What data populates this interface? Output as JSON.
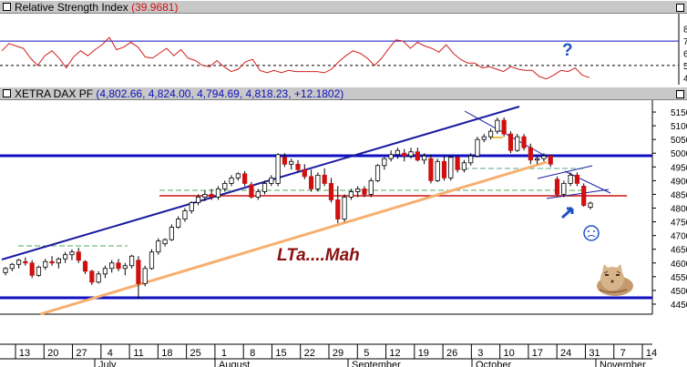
{
  "rsi_header": {
    "name": "Relative Strength Index",
    "value": "(39.9681)"
  },
  "price_header": {
    "name": "XETRA DAX PF",
    "ohlc": "(4,802.66, 4,824.00, 4,794.69, 4,818.23, +12.1802)"
  },
  "annotation": "LTa....Mah",
  "question_mark": "?",
  "colors": {
    "up_candle": "#ffffff",
    "down_candle": "#d01010",
    "trend_blue": "#1a1aa0",
    "trend_orange": "#f5b070",
    "horizontal_blue": "#1010c0",
    "horizontal_red": "#cc1010",
    "rsi_line": "#d02020"
  },
  "chart_data": [
    {
      "type": "line",
      "title": "Relative Strength Index",
      "current_value": 39.9681,
      "y_ticks": [
        "8",
        "7",
        "6",
        "5",
        "4"
      ],
      "ylim": [
        35,
        85
      ],
      "guide_levels": [
        70,
        50
      ],
      "series": [
        {
          "values": [
            62,
            68,
            66,
            64,
            56,
            50,
            58,
            62,
            56,
            48,
            57,
            62,
            58,
            63,
            67,
            73,
            63,
            65,
            69,
            65,
            57,
            56,
            60,
            64,
            58,
            63,
            56,
            54,
            50,
            49,
            54,
            49,
            45,
            47,
            53,
            55,
            46,
            44,
            46,
            44,
            46,
            45,
            45,
            45,
            45,
            44,
            47,
            53,
            58,
            62,
            60,
            56,
            50,
            56,
            64,
            71,
            70,
            64,
            69,
            66,
            64,
            61,
            67,
            60,
            55,
            52,
            52,
            48,
            49,
            47,
            45,
            49,
            47,
            46,
            46,
            41,
            39,
            42,
            46,
            45,
            48,
            42,
            40
          ]
        }
      ]
    },
    {
      "type": "candlestick",
      "title": "XETRA DAX PF",
      "ylim": [
        4420,
        5180
      ],
      "y_ticks": [
        "5150",
        "5100",
        "5050",
        "5000",
        "4950",
        "4900",
        "4850",
        "4800",
        "4750",
        "4700",
        "4650",
        "4600",
        "4550",
        "4500",
        "4450"
      ],
      "x_ticks": [
        "13",
        "20",
        "27",
        "4",
        "11",
        "18",
        "25",
        "1",
        "8",
        "15",
        "22",
        "29",
        "5",
        "12",
        "19",
        "26",
        "3",
        "10",
        "17",
        "24",
        "31",
        "7",
        "14"
      ],
      "months": [
        "July",
        "August",
        "September",
        "October",
        "November"
      ],
      "candles": [
        {
          "o": 4565,
          "h": 4585,
          "l": 4555,
          "c": 4580
        },
        {
          "o": 4580,
          "h": 4600,
          "l": 4570,
          "c": 4595
        },
        {
          "o": 4595,
          "h": 4615,
          "l": 4580,
          "c": 4610
        },
        {
          "o": 4605,
          "h": 4620,
          "l": 4590,
          "c": 4600
        },
        {
          "o": 4600,
          "h": 4610,
          "l": 4545,
          "c": 4555
        },
        {
          "o": 4555,
          "h": 4590,
          "l": 4550,
          "c": 4585
        },
        {
          "o": 4585,
          "h": 4615,
          "l": 4575,
          "c": 4605
        },
        {
          "o": 4605,
          "h": 4625,
          "l": 4590,
          "c": 4600
        },
        {
          "o": 4600,
          "h": 4620,
          "l": 4580,
          "c": 4615
        },
        {
          "o": 4615,
          "h": 4640,
          "l": 4600,
          "c": 4630
        },
        {
          "o": 4630,
          "h": 4650,
          "l": 4610,
          "c": 4640
        },
        {
          "o": 4640,
          "h": 4655,
          "l": 4600,
          "c": 4610
        },
        {
          "o": 4605,
          "h": 4610,
          "l": 4560,
          "c": 4570
        },
        {
          "o": 4570,
          "h": 4575,
          "l": 4520,
          "c": 4530
        },
        {
          "o": 4530,
          "h": 4570,
          "l": 4525,
          "c": 4560
        },
        {
          "o": 4560,
          "h": 4590,
          "l": 4545,
          "c": 4580
        },
        {
          "o": 4580,
          "h": 4610,
          "l": 4565,
          "c": 4600
        },
        {
          "o": 4600,
          "h": 4615,
          "l": 4570,
          "c": 4580
        },
        {
          "o": 4580,
          "h": 4600,
          "l": 4555,
          "c": 4590
        },
        {
          "o": 4590,
          "h": 4630,
          "l": 4580,
          "c": 4625
        },
        {
          "o": 4610,
          "h": 4625,
          "l": 4470,
          "c": 4525
        },
        {
          "o": 4525,
          "h": 4590,
          "l": 4515,
          "c": 4580
        },
        {
          "o": 4580,
          "h": 4650,
          "l": 4575,
          "c": 4640
        },
        {
          "o": 4640,
          "h": 4690,
          "l": 4630,
          "c": 4680
        },
        {
          "o": 4670,
          "h": 4690,
          "l": 4660,
          "c": 4685
        },
        {
          "o": 4685,
          "h": 4740,
          "l": 4680,
          "c": 4730
        },
        {
          "o": 4730,
          "h": 4770,
          "l": 4725,
          "c": 4760
        },
        {
          "o": 4760,
          "h": 4800,
          "l": 4750,
          "c": 4790
        },
        {
          "o": 4790,
          "h": 4825,
          "l": 4780,
          "c": 4820
        },
        {
          "o": 4820,
          "h": 4850,
          "l": 4810,
          "c": 4840
        },
        {
          "o": 4840,
          "h": 4865,
          "l": 4825,
          "c": 4850
        },
        {
          "o": 4850,
          "h": 4870,
          "l": 4830,
          "c": 4840
        },
        {
          "o": 4840,
          "h": 4880,
          "l": 4830,
          "c": 4870
        },
        {
          "o": 4870,
          "h": 4900,
          "l": 4860,
          "c": 4890
        },
        {
          "o": 4890,
          "h": 4920,
          "l": 4880,
          "c": 4910
        },
        {
          "o": 4910,
          "h": 4930,
          "l": 4900,
          "c": 4925
        },
        {
          "o": 4925,
          "h": 4935,
          "l": 4880,
          "c": 4890
        },
        {
          "o": 4885,
          "h": 4895,
          "l": 4835,
          "c": 4840
        },
        {
          "o": 4840,
          "h": 4870,
          "l": 4830,
          "c": 4860
        },
        {
          "o": 4860,
          "h": 4900,
          "l": 4850,
          "c": 4890
        },
        {
          "o": 4890,
          "h": 4920,
          "l": 4880,
          "c": 4910
        },
        {
          "o": 4890,
          "h": 5000,
          "l": 4880,
          "c": 4995
        },
        {
          "o": 4985,
          "h": 5000,
          "l": 4950,
          "c": 4960
        },
        {
          "o": 4960,
          "h": 4980,
          "l": 4940,
          "c": 4970
        },
        {
          "o": 4960,
          "h": 4975,
          "l": 4930,
          "c": 4940
        },
        {
          "o": 4940,
          "h": 4960,
          "l": 4905,
          "c": 4915
        },
        {
          "o": 4915,
          "h": 4940,
          "l": 4860,
          "c": 4870
        },
        {
          "o": 4870,
          "h": 4930,
          "l": 4860,
          "c": 4920
        },
        {
          "o": 4920,
          "h": 4945,
          "l": 4880,
          "c": 4890
        },
        {
          "o": 4890,
          "h": 4910,
          "l": 4820,
          "c": 4830
        },
        {
          "o": 4830,
          "h": 4880,
          "l": 4745,
          "c": 4760
        },
        {
          "o": 4760,
          "h": 4850,
          "l": 4750,
          "c": 4840
        },
        {
          "o": 4840,
          "h": 4870,
          "l": 4830,
          "c": 4860
        },
        {
          "o": 4860,
          "h": 4880,
          "l": 4840,
          "c": 4870
        },
        {
          "o": 4870,
          "h": 4880,
          "l": 4840,
          "c": 4850
        },
        {
          "o": 4850,
          "h": 4910,
          "l": 4840,
          "c": 4900
        },
        {
          "o": 4900,
          "h": 4960,
          "l": 4895,
          "c": 4955
        },
        {
          "o": 4955,
          "h": 4985,
          "l": 4940,
          "c": 4980
        },
        {
          "o": 4980,
          "h": 5010,
          "l": 4970,
          "c": 4995
        },
        {
          "o": 4995,
          "h": 5020,
          "l": 4980,
          "c": 5010
        },
        {
          "o": 5000,
          "h": 5015,
          "l": 4970,
          "c": 4990
        },
        {
          "o": 4990,
          "h": 5020,
          "l": 4980,
          "c": 5005
        },
        {
          "o": 5005,
          "h": 5020,
          "l": 4970,
          "c": 4975
        },
        {
          "o": 4975,
          "h": 5000,
          "l": 4960,
          "c": 4990
        },
        {
          "o": 4980,
          "h": 4995,
          "l": 4890,
          "c": 4900
        },
        {
          "o": 4900,
          "h": 4980,
          "l": 4895,
          "c": 4970
        },
        {
          "o": 4970,
          "h": 4990,
          "l": 4900,
          "c": 4910
        },
        {
          "o": 4910,
          "h": 4990,
          "l": 4900,
          "c": 4985
        },
        {
          "o": 4985,
          "h": 4990,
          "l": 4930,
          "c": 4940
        },
        {
          "o": 4940,
          "h": 4975,
          "l": 4930,
          "c": 4965
        },
        {
          "o": 4965,
          "h": 5000,
          "l": 4955,
          "c": 4990
        },
        {
          "o": 4990,
          "h": 5060,
          "l": 4985,
          "c": 5050
        },
        {
          "o": 5050,
          "h": 5070,
          "l": 5040,
          "c": 5060
        },
        {
          "o": 5060,
          "h": 5090,
          "l": 5050,
          "c": 5080
        },
        {
          "o": 5080,
          "h": 5130,
          "l": 5070,
          "c": 5120
        },
        {
          "o": 5120,
          "h": 5130,
          "l": 5060,
          "c": 5070
        },
        {
          "o": 5070,
          "h": 5080,
          "l": 5000,
          "c": 5010
        },
        {
          "o": 5010,
          "h": 5070,
          "l": 5005,
          "c": 5060
        },
        {
          "o": 5060,
          "h": 5070,
          "l": 5010,
          "c": 5020
        },
        {
          "o": 5020,
          "h": 5035,
          "l": 4960,
          "c": 4975
        },
        {
          "o": 4975,
          "h": 4990,
          "l": 4960,
          "c": 4980
        },
        {
          "o": 4980,
          "h": 5000,
          "l": 4970,
          "c": 4990
        },
        {
          "o": 4990,
          "h": 4995,
          "l": 4950,
          "c": 4960
        },
        {
          "o": 4905,
          "h": 4915,
          "l": 4845,
          "c": 4850
        },
        {
          "o": 4850,
          "h": 4900,
          "l": 4840,
          "c": 4890
        },
        {
          "o": 4890,
          "h": 4930,
          "l": 4880,
          "c": 4920
        },
        {
          "o": 4920,
          "h": 4930,
          "l": 4880,
          "c": 4890
        },
        {
          "o": 4880,
          "h": 4890,
          "l": 4805,
          "c": 4810
        },
        {
          "o": 4803,
          "h": 4824,
          "l": 4795,
          "c": 4818
        }
      ]
    }
  ]
}
